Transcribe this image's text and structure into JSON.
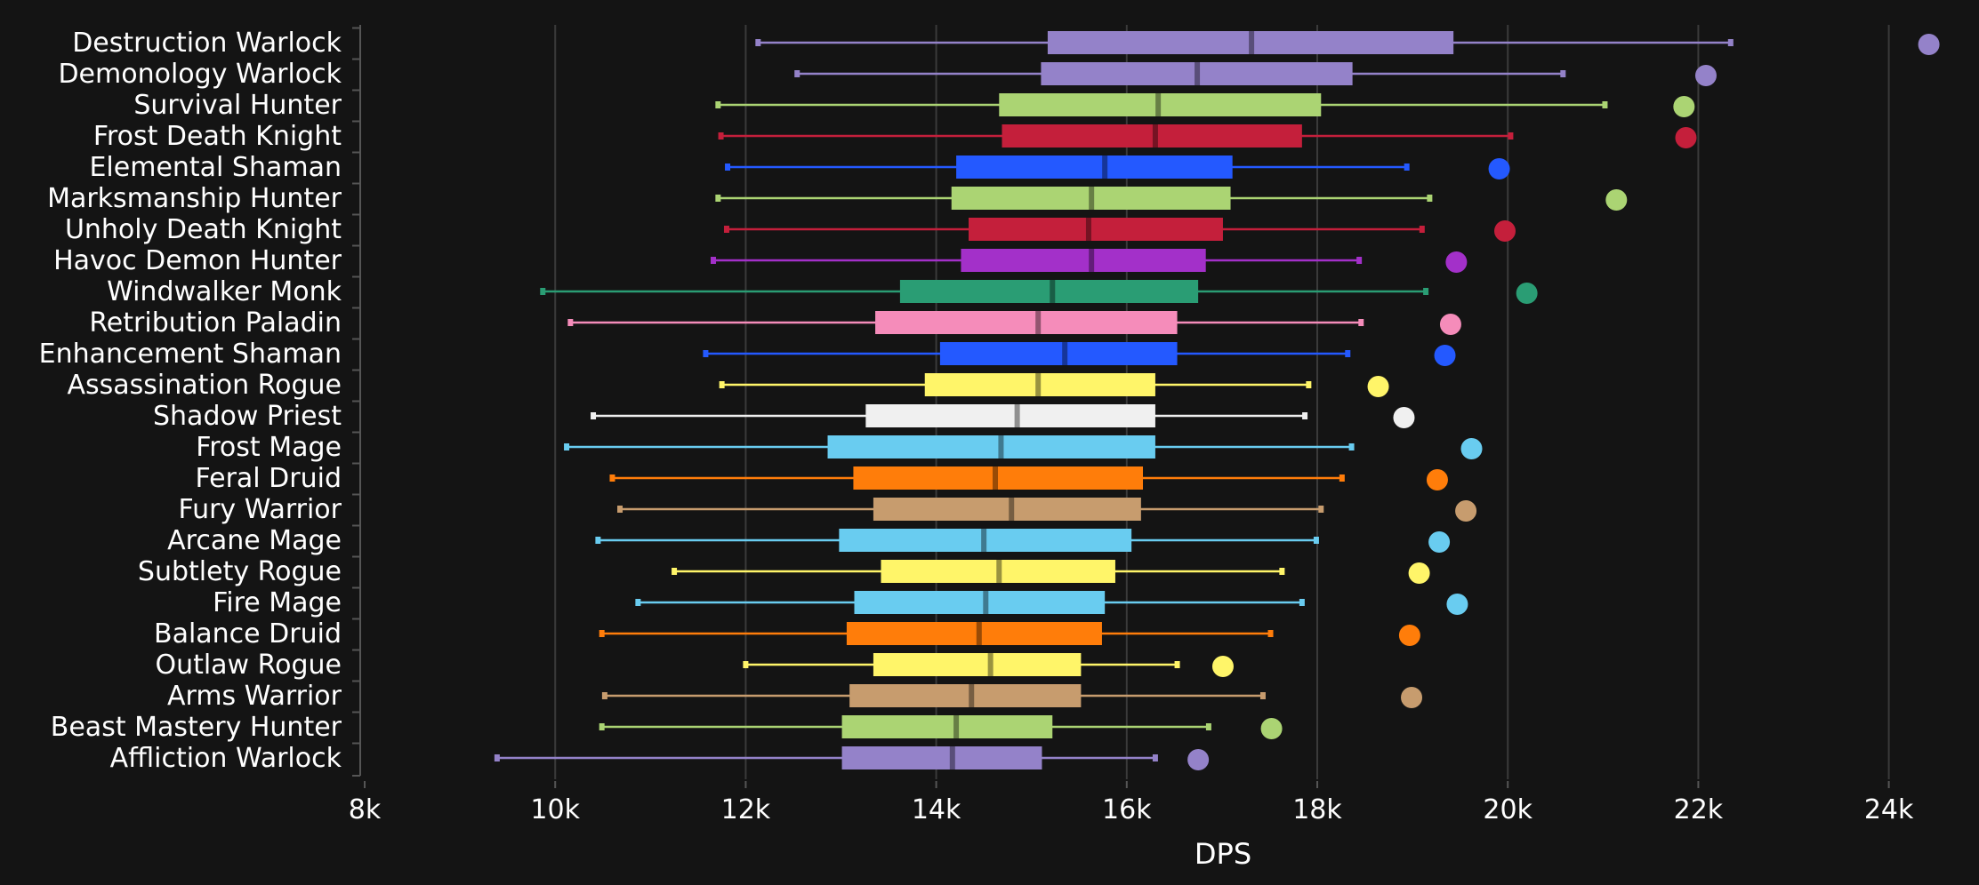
{
  "chart_data": {
    "type": "box",
    "title": "",
    "xlabel": "DPS",
    "ylabel": "",
    "xlim": [
      8000,
      25000
    ],
    "xticks": [
      8000,
      10000,
      12000,
      14000,
      16000,
      18000,
      20000,
      22000,
      24000
    ],
    "xtick_labels": [
      "8k",
      "10k",
      "12k",
      "14k",
      "16k",
      "18k",
      "20k",
      "22k",
      "24k"
    ],
    "grid": "vertical",
    "categories": [
      {
        "name": "Destruction Warlock",
        "color": "#9482c9",
        "min": 12130,
        "q1": 15170,
        "median": 17310,
        "q3": 19430,
        "max": 22340,
        "outlier": 24420
      },
      {
        "name": "Demonology Warlock",
        "color": "#9482c9",
        "min": 12540,
        "q1": 15100,
        "median": 16740,
        "q3": 18370,
        "max": 20580,
        "outlier": 22080
      },
      {
        "name": "Survival Hunter",
        "color": "#abd473",
        "min": 11710,
        "q1": 14660,
        "median": 16330,
        "q3": 18040,
        "max": 21020,
        "outlier": 21850
      },
      {
        "name": "Frost Death Knight",
        "color": "#c41f3b",
        "min": 11740,
        "q1": 14690,
        "median": 16300,
        "q3": 17840,
        "max": 20030,
        "outlier": 21870
      },
      {
        "name": "Elemental Shaman",
        "color": "#2459ff",
        "min": 11810,
        "q1": 14210,
        "median": 15770,
        "q3": 17110,
        "max": 18940,
        "outlier": 19910
      },
      {
        "name": "Marksmanship Hunter",
        "color": "#abd473",
        "min": 11710,
        "q1": 14160,
        "median": 15630,
        "q3": 17090,
        "max": 19180,
        "outlier": 21140
      },
      {
        "name": "Unholy Death Knight",
        "color": "#c41f3b",
        "min": 11800,
        "q1": 14340,
        "median": 15600,
        "q3": 17010,
        "max": 19100,
        "outlier": 19970
      },
      {
        "name": "Havoc Demon Hunter",
        "color": "#a330c9",
        "min": 11660,
        "q1": 14260,
        "median": 15630,
        "q3": 16830,
        "max": 18440,
        "outlier": 19460
      },
      {
        "name": "Windwalker Monk",
        "color": "#2a9d74",
        "min": 9870,
        "q1": 13620,
        "median": 15220,
        "q3": 16750,
        "max": 19140,
        "outlier": 20200
      },
      {
        "name": "Retribution Paladin",
        "color": "#f58cba",
        "min": 10160,
        "q1": 13360,
        "median": 15070,
        "q3": 16530,
        "max": 18460,
        "outlier": 19400
      },
      {
        "name": "Enhancement Shaman",
        "color": "#2459ff",
        "min": 11580,
        "q1": 14040,
        "median": 15350,
        "q3": 16530,
        "max": 18320,
        "outlier": 19340
      },
      {
        "name": "Assassination Rogue",
        "color": "#fff569",
        "min": 11750,
        "q1": 13880,
        "median": 15070,
        "q3": 16300,
        "max": 17910,
        "outlier": 18640
      },
      {
        "name": "Shadow Priest",
        "color": "#f0f0f0",
        "min": 10400,
        "q1": 13260,
        "median": 14850,
        "q3": 16300,
        "max": 17870,
        "outlier": 18910
      },
      {
        "name": "Frost Mage",
        "color": "#69ccf0",
        "min": 10120,
        "q1": 12860,
        "median": 14680,
        "q3": 16300,
        "max": 18360,
        "outlier": 19620
      },
      {
        "name": "Feral Druid",
        "color": "#ff7d0a",
        "min": 10600,
        "q1": 13130,
        "median": 14620,
        "q3": 16170,
        "max": 18260,
        "outlier": 19260
      },
      {
        "name": "Fury Warrior",
        "color": "#c79c6e",
        "min": 10680,
        "q1": 13340,
        "median": 14790,
        "q3": 16150,
        "max": 18040,
        "outlier": 19560
      },
      {
        "name": "Arcane Mage",
        "color": "#69ccf0",
        "min": 10450,
        "q1": 12980,
        "median": 14500,
        "q3": 16050,
        "max": 17990,
        "outlier": 19280
      },
      {
        "name": "Subtlety Rogue",
        "color": "#fff569",
        "min": 11250,
        "q1": 13420,
        "median": 14660,
        "q3": 15880,
        "max": 17630,
        "outlier": 19070
      },
      {
        "name": "Fire Mage",
        "color": "#69ccf0",
        "min": 10870,
        "q1": 13140,
        "median": 14520,
        "q3": 15770,
        "max": 17840,
        "outlier": 19470
      },
      {
        "name": "Balance Druid",
        "color": "#ff7d0a",
        "min": 10490,
        "q1": 13060,
        "median": 14450,
        "q3": 15740,
        "max": 17510,
        "outlier": 18970
      },
      {
        "name": "Outlaw Rogue",
        "color": "#fff569",
        "min": 12000,
        "q1": 13340,
        "median": 14570,
        "q3": 15520,
        "max": 16530,
        "outlier": 17010
      },
      {
        "name": "Arms Warrior",
        "color": "#c79c6e",
        "min": 10520,
        "q1": 13090,
        "median": 14370,
        "q3": 15520,
        "max": 17430,
        "outlier": 18990
      },
      {
        "name": "Beast Mastery Hunter",
        "color": "#abd473",
        "min": 10490,
        "q1": 13010,
        "median": 14210,
        "q3": 15220,
        "max": 16860,
        "outlier": 17520
      },
      {
        "name": "Affliction Warlock",
        "color": "#9482c9",
        "min": 9390,
        "q1": 13010,
        "median": 14170,
        "q3": 15110,
        "max": 16300,
        "outlier": 16750
      }
    ]
  }
}
